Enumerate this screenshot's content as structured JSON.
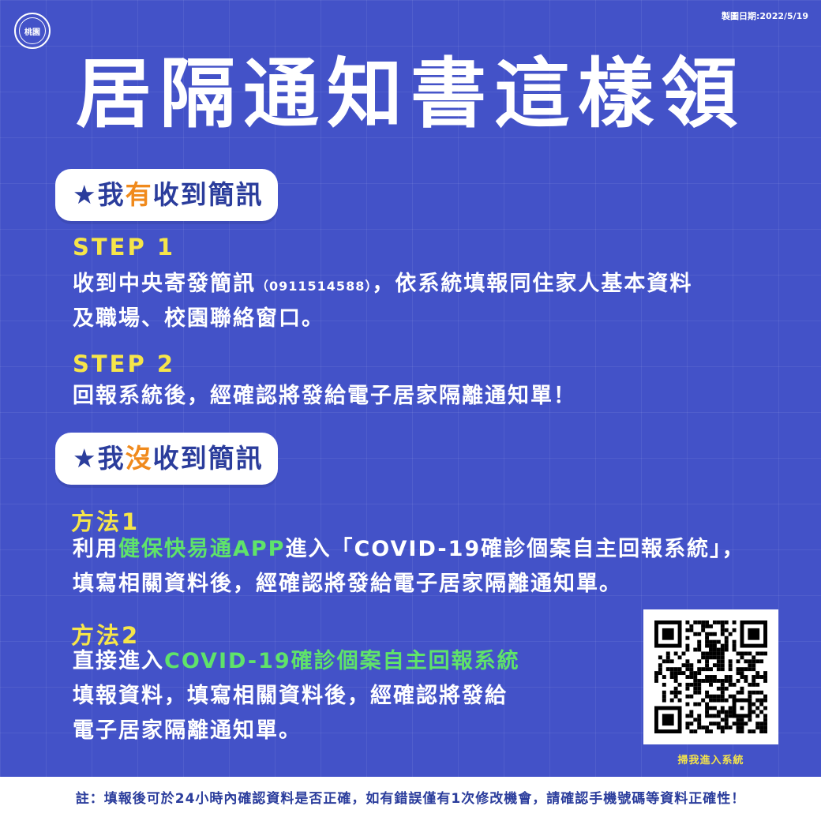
{
  "logo": {
    "text": "桃園"
  },
  "made_date": "製圖日期:2022/5/19",
  "title": "居隔通知書這樣領",
  "section_received": {
    "star": "★",
    "pre": "我",
    "highlight": "有",
    "post": "收到簡訊",
    "steps": [
      {
        "label": "STEP 1",
        "line1_a": "收到中央寄發簡訊",
        "line1_small": "（0911514588）",
        "line1_b": "，依系統填報同住家人基本資料",
        "line2": "及職場、校園聯絡窗口。"
      },
      {
        "label": "STEP 2",
        "line1": "回報系統後，經確認將發給電子居家隔離通知單！"
      }
    ]
  },
  "section_not_received": {
    "star": "★",
    "pre": "我",
    "highlight": "沒",
    "post": "收到簡訊",
    "methods": [
      {
        "label": "方法1",
        "line1_a": "利用",
        "line1_green": "健保快易通APP",
        "line1_b": "進入「COVID-19確診個案自主回報系統」，",
        "line2": "填寫相關資料後，經確認將發給電子居家隔離通知單。"
      },
      {
        "label": "方法2",
        "line1_a": "直接進入",
        "line1_green": "COVID-19確診個案自主回報系統",
        "line2": "填報資料，填寫相關資料後，經確認將發給",
        "line3": "電子居家隔離通知單。"
      }
    ]
  },
  "qr": {
    "caption": "掃我進入系統"
  },
  "footer": "註：填報後可於24小時內確認資料是否正確，如有錯誤僅有1次修改機會，請確認手機號碼等資料正確性！",
  "colors": {
    "background": "#4352c8",
    "step_label": "#f6e54a",
    "highlight_orange": "#f08a1c",
    "highlight_green": "#5fe36a",
    "pill_text": "#2b3d9c"
  }
}
